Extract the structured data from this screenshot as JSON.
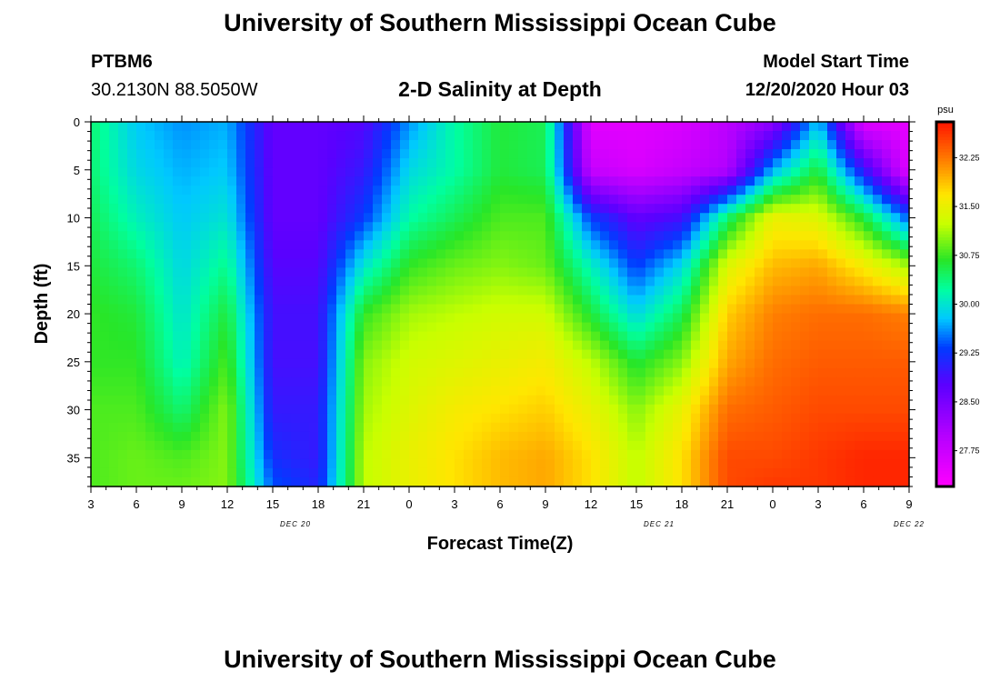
{
  "header": {
    "title": "University of Southern Mississippi Ocean Cube",
    "station": "PTBM6",
    "coords": "30.2130N 88.5050W",
    "plot_title": "2-D Salinity at Depth",
    "model_label": "Model Start Time",
    "model_time": "12/20/2020 Hour 03"
  },
  "footer": {
    "title": "University of Southern Mississippi Ocean Cube"
  },
  "chart_data": {
    "type": "heatmap",
    "title": "2-D Salinity at Depth",
    "xlabel": "Forecast Time(Z)",
    "ylabel": "Depth (ft)",
    "x_tick_labels": [
      "3",
      "6",
      "9",
      "12",
      "15",
      "18",
      "21",
      "0",
      "3",
      "6",
      "9",
      "12",
      "15",
      "18",
      "21",
      "0",
      "3",
      "6",
      "9"
    ],
    "date_labels": [
      {
        "text": "DEC 20",
        "x_index": 4.5
      },
      {
        "text": "DEC 21",
        "x_index": 12.5
      },
      {
        "text": "DEC 22",
        "x_index": 18
      }
    ],
    "x_range_hours": [
      0,
      54
    ],
    "y_ticks": [
      0,
      5,
      10,
      15,
      20,
      25,
      30,
      35
    ],
    "ylim": [
      38,
      0
    ],
    "colorbar": {
      "unit": "psu",
      "tick_labels": [
        "32.25",
        "31.50",
        "30.75",
        "30.00",
        "29.25",
        "28.50",
        "27.75"
      ],
      "tick_values": [
        32.25,
        31.5,
        30.75,
        30.0,
        29.25,
        28.5,
        27.75
      ],
      "vmin": 27.2,
      "vmax": 32.8
    },
    "depths": [
      0,
      5,
      10,
      15,
      20,
      25,
      30,
      35,
      38
    ],
    "times": [
      0,
      3,
      6,
      9,
      12,
      15,
      18,
      21,
      24,
      27,
      30,
      33,
      36,
      39,
      42,
      45,
      48,
      51,
      54
    ],
    "values": [
      [
        30.4,
        29.8,
        29.6,
        29.7,
        28.7,
        28.7,
        28.8,
        29.6,
        30.2,
        30.6,
        30.5,
        27.5,
        27.5,
        27.6,
        27.9,
        28.3,
        29.8,
        27.5,
        27.5
      ],
      [
        30.4,
        29.9,
        29.7,
        29.8,
        28.7,
        28.7,
        29.0,
        29.9,
        30.2,
        30.6,
        30.5,
        27.8,
        27.6,
        27.8,
        28.0,
        29.7,
        30.6,
        29.0,
        27.5
      ],
      [
        30.5,
        30.1,
        29.8,
        30.0,
        28.7,
        28.7,
        29.3,
        30.2,
        30.5,
        30.8,
        30.8,
        29.3,
        28.7,
        28.9,
        30.4,
        31.5,
        31.4,
        30.6,
        29.4
      ],
      [
        30.6,
        30.4,
        29.9,
        30.3,
        28.8,
        28.8,
        30.0,
        30.7,
        30.9,
        31.0,
        30.9,
        30.1,
        29.3,
        29.9,
        31.4,
        31.9,
        32.0,
        31.6,
        31.1
      ],
      [
        30.7,
        30.6,
        30.0,
        30.6,
        28.9,
        28.9,
        30.7,
        31.1,
        31.2,
        31.3,
        31.3,
        30.6,
        29.9,
        30.5,
        31.8,
        32.2,
        32.3,
        32.3,
        32.2
      ],
      [
        30.7,
        30.7,
        30.1,
        30.8,
        28.9,
        28.9,
        31.0,
        31.3,
        31.4,
        31.5,
        31.6,
        31.2,
        30.6,
        31.0,
        32.0,
        32.3,
        32.4,
        32.4,
        32.4
      ],
      [
        30.8,
        30.8,
        30.4,
        31.0,
        29.0,
        29.0,
        31.1,
        31.4,
        31.6,
        31.7,
        31.8,
        31.5,
        31.0,
        31.5,
        32.3,
        32.4,
        32.5,
        32.5,
        32.5
      ],
      [
        30.8,
        30.9,
        30.8,
        31.0,
        29.2,
        29.0,
        31.2,
        31.5,
        31.7,
        31.9,
        32.0,
        31.7,
        31.2,
        31.7,
        32.5,
        32.5,
        32.6,
        32.7,
        32.7
      ],
      [
        30.8,
        30.9,
        30.9,
        31.0,
        29.4,
        29.1,
        31.2,
        31.5,
        31.7,
        31.9,
        32.0,
        31.7,
        31.2,
        31.7,
        32.5,
        32.6,
        32.6,
        32.7,
        32.7
      ]
    ]
  }
}
